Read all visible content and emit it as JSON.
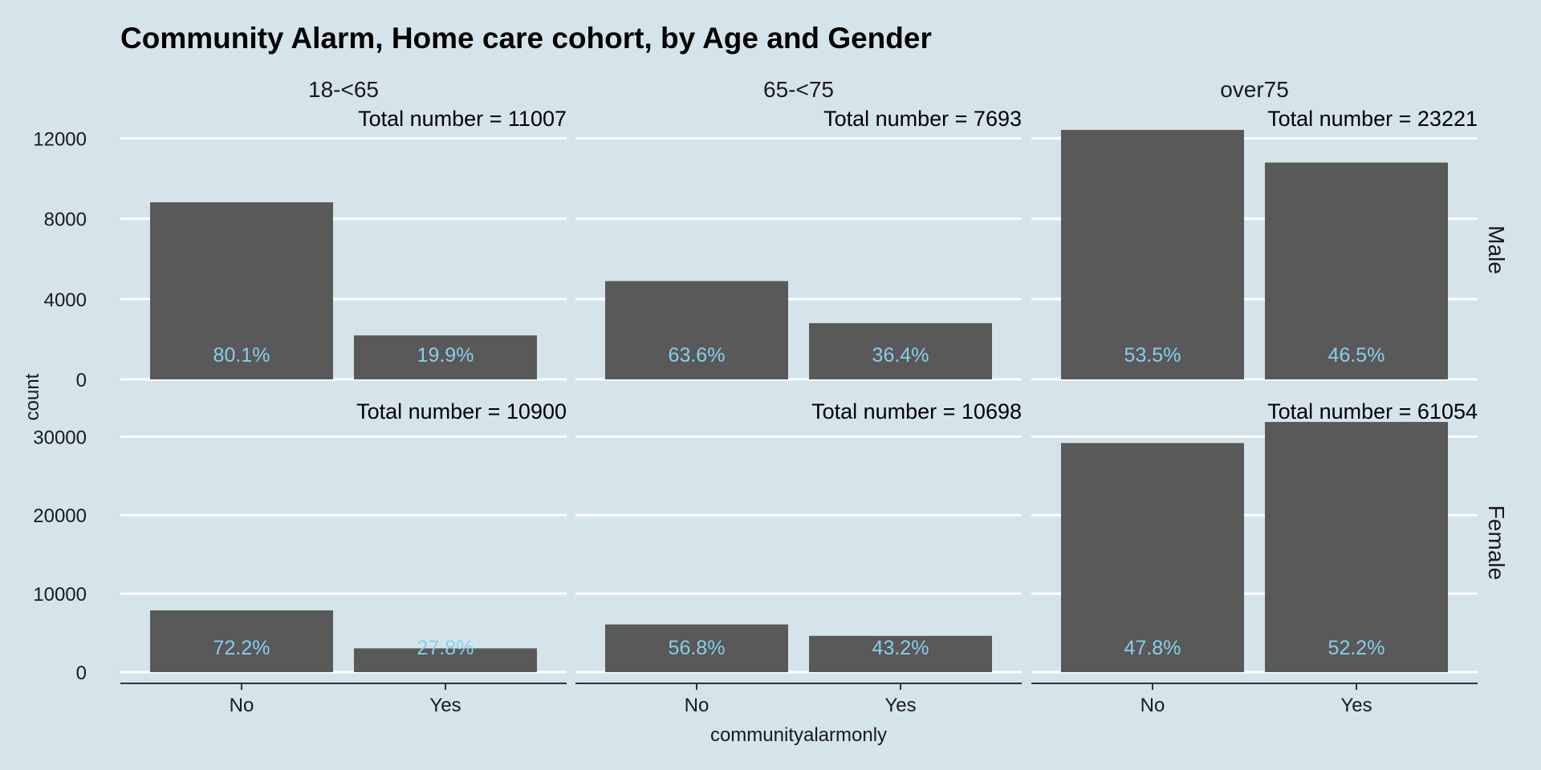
{
  "chart_data": {
    "type": "bar",
    "title": "Community Alarm, Home care cohort, by Age and Gender",
    "xlabel": "communityalarmonly",
    "ylabel": "count",
    "categories": [
      "No",
      "Yes"
    ],
    "col_facets": [
      "18-<65",
      "65-<75",
      "over75"
    ],
    "row_facets": [
      {
        "name": "Male",
        "ylim": [
          0,
          12900
        ],
        "yticks": [
          0,
          4000,
          8000,
          12000
        ],
        "panels": [
          {
            "facet": "18-<65",
            "values": [
              8817,
              2190
            ],
            "labels": [
              "80.1%",
              "19.9%"
            ],
            "total_label": "Total number = 11007"
          },
          {
            "facet": "65-<75",
            "values": [
              4893,
              2800
            ],
            "labels": [
              "63.6%",
              "36.4%"
            ],
            "total_label": "Total number = 7693"
          },
          {
            "facet": "over75",
            "values": [
              12423,
              10798
            ],
            "labels": [
              "53.5%",
              "46.5%"
            ],
            "total_label": "Total number = 23221"
          }
        ]
      },
      {
        "name": "Female",
        "ylim": [
          0,
          33000
        ],
        "yticks": [
          0,
          10000,
          20000,
          30000
        ],
        "panels": [
          {
            "facet": "18-<65",
            "values": [
              7870,
              3030
            ],
            "labels": [
              "72.2%",
              "27.8%"
            ],
            "total_label": "Total number = 10900"
          },
          {
            "facet": "65-<75",
            "values": [
              6076,
              4622
            ],
            "labels": [
              "56.8%",
              "43.2%"
            ],
            "total_label": "Total number = 10698"
          },
          {
            "facet": "over75",
            "values": [
              29184,
              31870
            ],
            "labels": [
              "47.8%",
              "52.2%"
            ],
            "total_label": "Total number = 61054"
          }
        ]
      }
    ],
    "colors": {
      "background": "#d5e4eb",
      "bar": "#595959",
      "gridline": "#ffffff",
      "label": "#87ceeb",
      "axis_line": "#333333"
    },
    "grid": true,
    "legend": "none"
  }
}
